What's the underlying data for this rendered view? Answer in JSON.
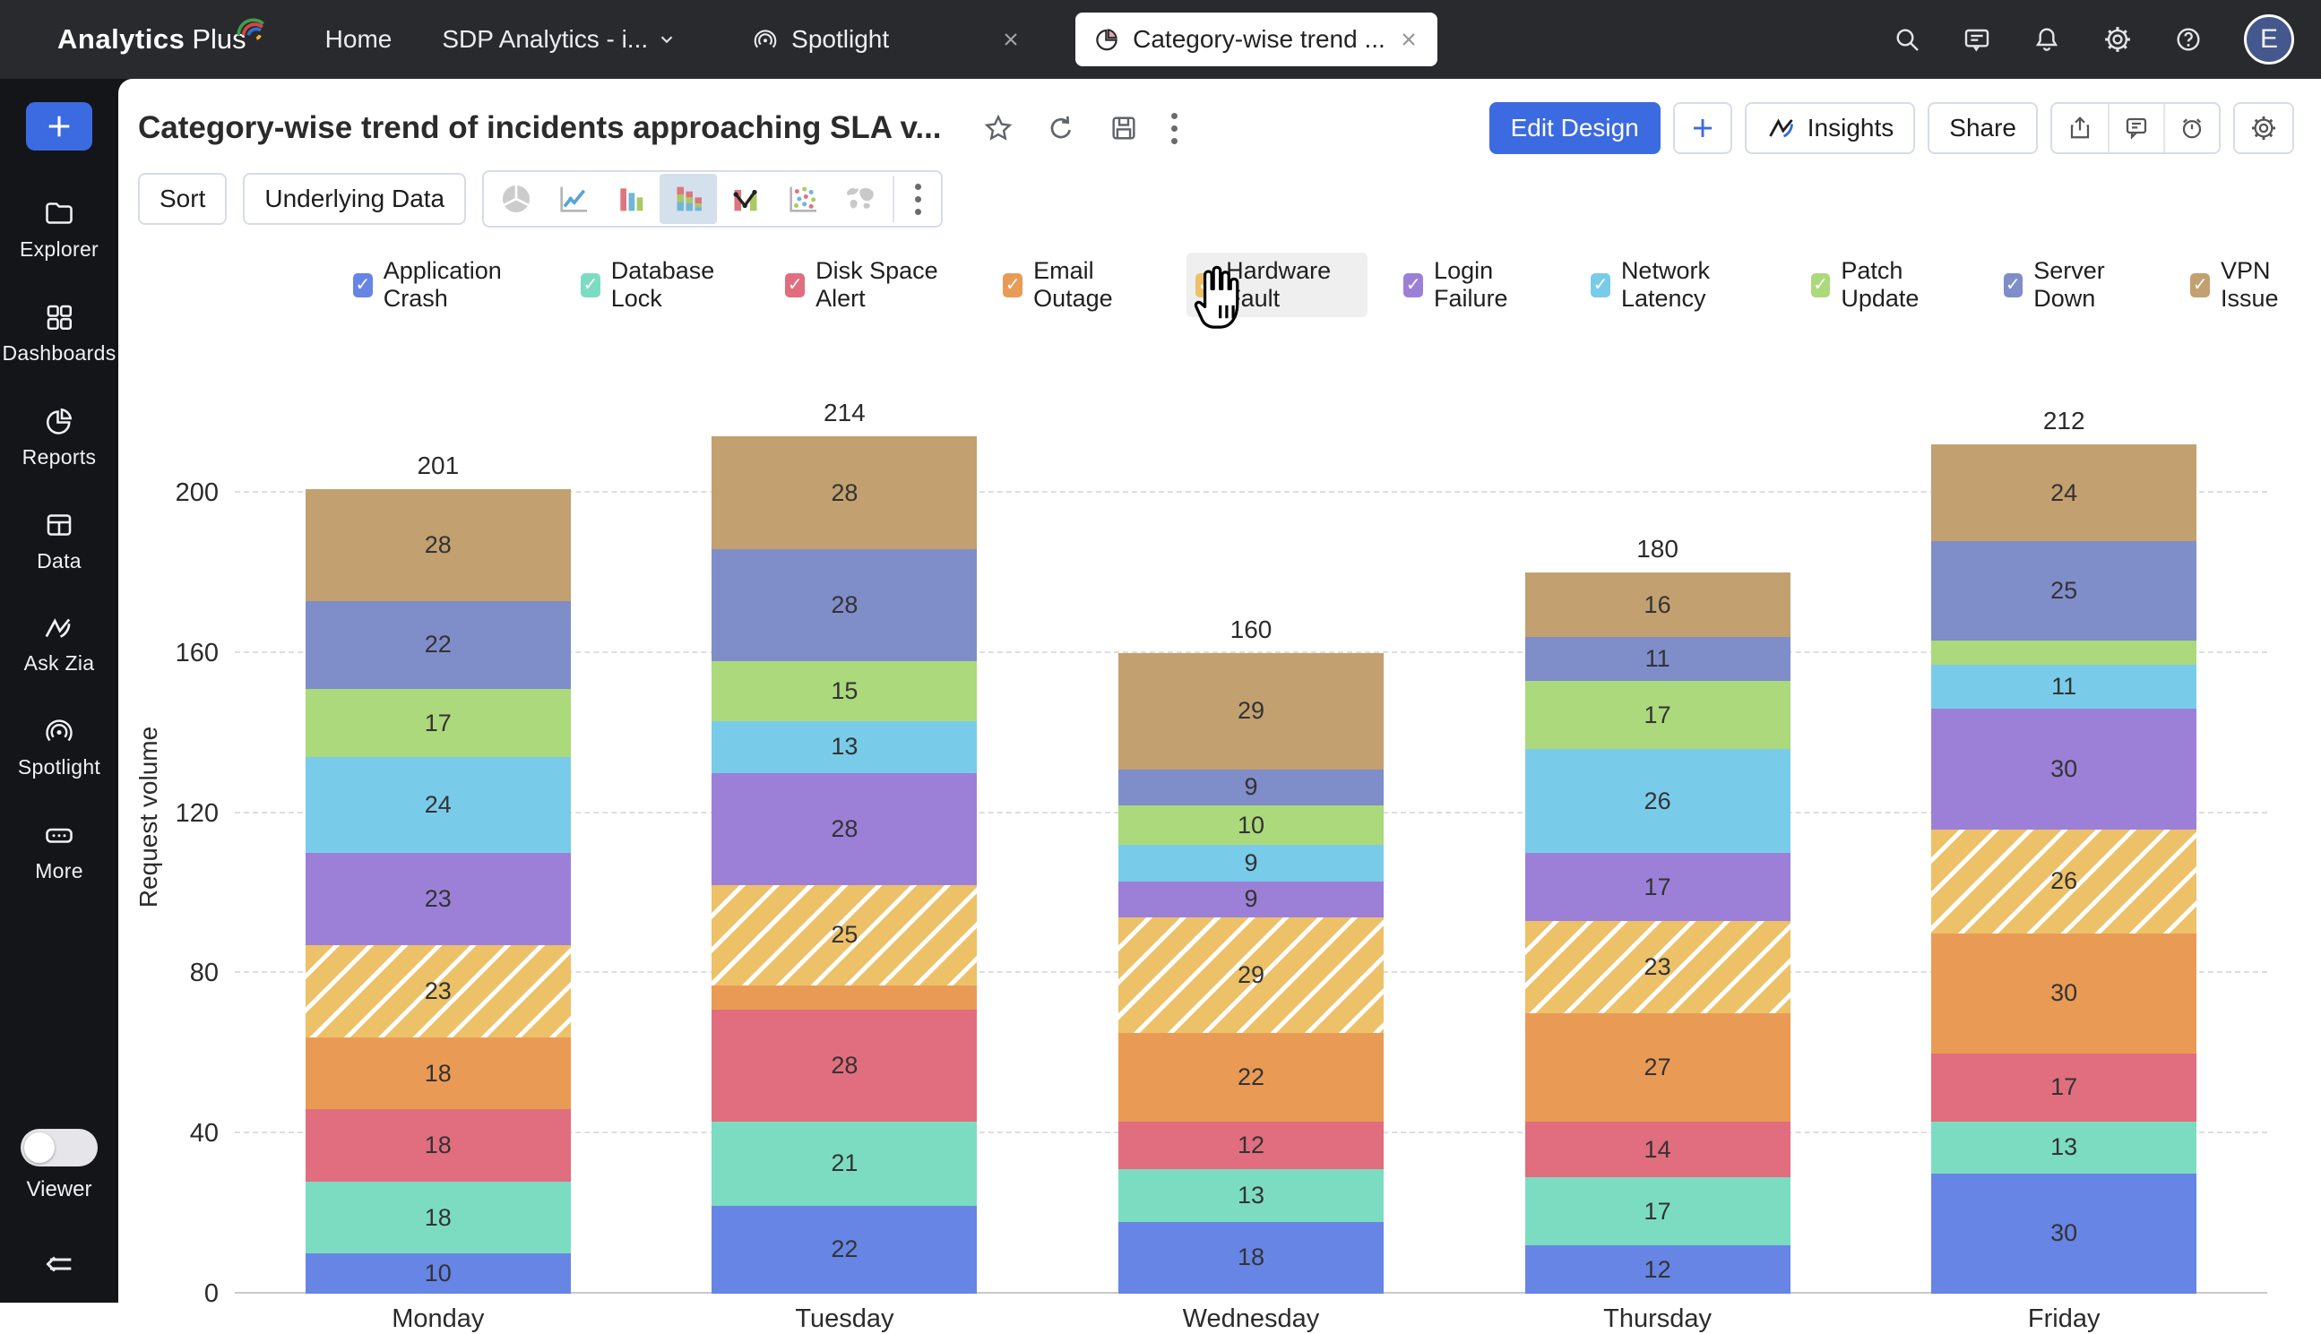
{
  "topbar": {
    "logo_bold": "Analytics",
    "logo_light": "Plus",
    "nav_home": "Home",
    "nav_workspace": "SDP Analytics - i...",
    "tab_spotlight": "Spotlight",
    "tab_active": "Category-wise trend ...",
    "right_icon_names": [
      "search-icon",
      "feedback-icon",
      "notifications-icon",
      "settings-icon",
      "help-icon"
    ],
    "avatar_initial": "E"
  },
  "sidebar": {
    "items": [
      {
        "label": "Explorer",
        "icon": "folder-icon"
      },
      {
        "label": "Dashboards",
        "icon": "grid-icon"
      },
      {
        "label": "Reports",
        "icon": "pie-icon"
      },
      {
        "label": "Data",
        "icon": "table-icon"
      },
      {
        "label": "Ask Zia",
        "icon": "zia-icon"
      },
      {
        "label": "Spotlight",
        "icon": "spotlight-icon"
      },
      {
        "label": "More",
        "icon": "more-icon"
      }
    ],
    "viewer_label": "Viewer",
    "viewer_on": false
  },
  "header": {
    "title": "Category-wise trend of incidents approaching SLA v...",
    "title_action_icons": [
      "star-icon",
      "refresh-icon",
      "save-icon",
      "kebab-icon"
    ],
    "edit_design": "Edit Design",
    "insights": "Insights",
    "share": "Share",
    "group_action_icons": [
      "export-icon",
      "comment-icon",
      "alert-icon"
    ],
    "settings_icon": "gear-icon"
  },
  "toolbar": {
    "sort": "Sort",
    "underlying_data": "Underlying Data",
    "chart_types": [
      "pie",
      "line",
      "bar",
      "stacked-bar",
      "combo",
      "scatter",
      "map"
    ],
    "selected_chart_type": "stacked-bar"
  },
  "ui": {
    "check_glyph": "✓"
  },
  "legend_hovered": "Hardware Fault",
  "chart_data": {
    "type": "bar",
    "subtype": "stacked-vertical",
    "title": "Category-wise trend of incidents approaching SLA v...",
    "categories": [
      "Monday",
      "Tuesday",
      "Wednesday",
      "Thursday",
      "Friday"
    ],
    "series": [
      {
        "name": "Application Crash",
        "color": "#6785e5",
        "values": [
          10,
          22,
          18,
          12,
          30
        ]
      },
      {
        "name": "Database Lock",
        "color": "#7cdcc2",
        "values": [
          18,
          21,
          13,
          17,
          13
        ]
      },
      {
        "name": "Disk Space Alert",
        "color": "#e06e7e",
        "values": [
          18,
          28,
          12,
          14,
          17
        ]
      },
      {
        "name": "Email Outage",
        "color": "#e99b55",
        "values": [
          18,
          6,
          22,
          27,
          30
        ]
      },
      {
        "name": "Hardware Fault",
        "color": "#ecc168",
        "hatched": true,
        "values": [
          23,
          25,
          29,
          23,
          26
        ]
      },
      {
        "name": "Login Failure",
        "color": "#9c80d8",
        "values": [
          23,
          28,
          9,
          17,
          30
        ]
      },
      {
        "name": "Network Latency",
        "color": "#79cce9",
        "values": [
          24,
          13,
          9,
          26,
          11
        ]
      },
      {
        "name": "Patch Update",
        "color": "#abd97b",
        "values": [
          17,
          15,
          10,
          17,
          6
        ]
      },
      {
        "name": "Server Down",
        "color": "#7f8dc9",
        "values": [
          22,
          28,
          9,
          11,
          25
        ]
      },
      {
        "name": "VPN Issue",
        "color": "#c2a070",
        "values": [
          28,
          28,
          29,
          16,
          24
        ]
      }
    ],
    "totals": [
      201,
      214,
      160,
      180,
      212
    ],
    "ylabel": "Request volume",
    "yticks": [
      0,
      40,
      80,
      120,
      160,
      200
    ],
    "ylim": [
      0,
      200
    ],
    "grid": "dashed-horizontal",
    "legend_position": "top",
    "label_min_value_shown": 9
  },
  "colors": {
    "accent": "#3c6ae0",
    "topbar_bg": "#292a2e",
    "sidebar_bg": "#131519",
    "selected_chart_type_bg": "#d5e0ed",
    "legend_hover_bg": "#efefef",
    "avatar_bg": "#44588d"
  }
}
